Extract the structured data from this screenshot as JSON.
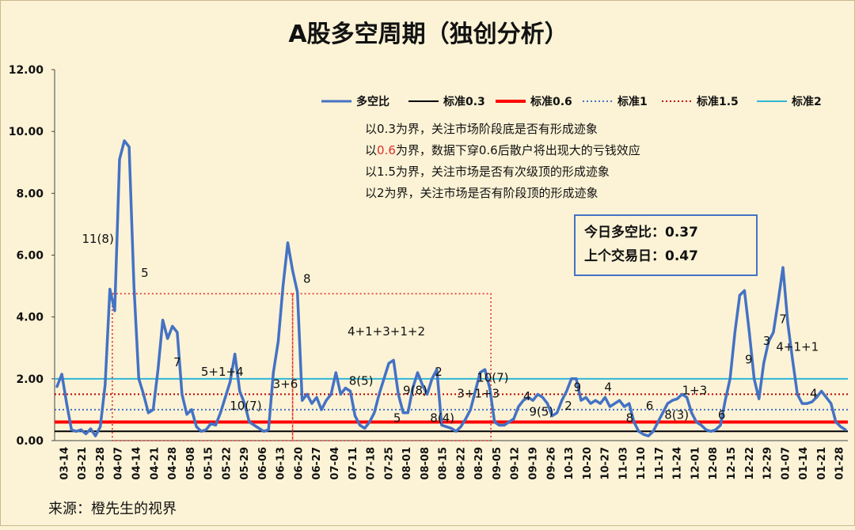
{
  "chart_data": {
    "type": "line",
    "title": "A股多空周期（独创分析）",
    "source": "来源：橙先生的视界",
    "ylim": [
      0,
      12
    ],
    "y_ticks": [
      "0.00",
      "2.00",
      "4.00",
      "6.00",
      "8.00",
      "10.00",
      "12.00"
    ],
    "x_ticks": [
      "03-14",
      "03-21",
      "03-28",
      "04-07",
      "04-14",
      "04-21",
      "04-28",
      "05-08",
      "05-15",
      "05-22",
      "05-29",
      "06-06",
      "06-13",
      "06-20",
      "06-27",
      "07-04",
      "07-11",
      "07-18",
      "07-25",
      "08-01",
      "08-08",
      "08-15",
      "08-22",
      "08-29",
      "09-05",
      "09-12",
      "09-19",
      "09-26",
      "10-13",
      "10-20",
      "10-27",
      "11-03",
      "11-10",
      "11-17",
      "11-24",
      "12-01",
      "12-08",
      "12-15",
      "12-22",
      "12-29",
      "01-07",
      "01-14",
      "01-21",
      "01-28"
    ],
    "series": [
      {
        "name": "多空比",
        "color": "#4472c4",
        "values": [
          1.75,
          2.15,
          1.2,
          0.35,
          0.3,
          0.35,
          0.22,
          0.38,
          0.15,
          0.45,
          1.8,
          4.9,
          4.2,
          9.1,
          9.7,
          9.5,
          5.0,
          2.0,
          1.5,
          0.9,
          1.0,
          2.3,
          3.9,
          3.3,
          3.7,
          3.5,
          1.5,
          0.85,
          1.0,
          0.45,
          0.3,
          0.35,
          0.55,
          0.5,
          0.9,
          1.4,
          1.9,
          2.8,
          1.6,
          1.2,
          0.6,
          0.5,
          0.4,
          0.3,
          0.35,
          2.2,
          3.2,
          5.0,
          6.4,
          5.5,
          4.8,
          1.3,
          1.5,
          1.2,
          1.4,
          1.0,
          1.3,
          1.5,
          2.2,
          1.5,
          1.7,
          1.6,
          0.8,
          0.5,
          0.4,
          0.6,
          0.9,
          1.5,
          2.0,
          2.5,
          2.6,
          1.5,
          0.9,
          0.9,
          1.7,
          2.2,
          1.8,
          1.5,
          2.0,
          2.3,
          0.5,
          0.45,
          0.4,
          0.3,
          0.45,
          0.7,
          1.0,
          1.6,
          2.2,
          2.3,
          1.7,
          0.6,
          0.5,
          0.5,
          0.6,
          0.7,
          1.1,
          1.3,
          1.4,
          1.3,
          1.5,
          1.4,
          1.2,
          0.8,
          0.9,
          1.3,
          1.6,
          2.0,
          2.0,
          1.3,
          1.4,
          1.2,
          1.3,
          1.2,
          1.4,
          1.1,
          1.2,
          1.3,
          1.1,
          1.2,
          0.6,
          0.3,
          0.2,
          0.15,
          0.3,
          0.6,
          0.9,
          1.2,
          1.3,
          1.35,
          1.5,
          1.4,
          0.9,
          0.6,
          0.5,
          0.35,
          0.3,
          0.35,
          0.5,
          1.3,
          2.0,
          3.5,
          4.7,
          4.85,
          3.5,
          2.0,
          1.35,
          2.5,
          3.2,
          3.5,
          4.5,
          5.6,
          3.8,
          2.6,
          1.5,
          1.2,
          1.2,
          1.25,
          1.4,
          1.6,
          1.4,
          1.2,
          0.6,
          0.45,
          0.35
        ]
      },
      {
        "name": "标准0.3",
        "color": "#000000",
        "value": 0.3
      },
      {
        "name": "标准0.6",
        "color": "#ff0000",
        "value": 0.6
      },
      {
        "name": "标准1",
        "color": "#4472c4",
        "value": 1.0
      },
      {
        "name": "标准1.5",
        "color": "#c00000",
        "value": 1.5
      },
      {
        "name": "标准2",
        "color": "#31b6d6",
        "value": 2.0
      }
    ],
    "notes": [
      {
        "prefix": "以",
        "highlight": "",
        "suffix": "0.3为界，关注市场阶段底是否有形成迹象"
      },
      {
        "prefix": "以",
        "highlight": "0.6",
        "suffix": "为界，数据下穿0.6后散户将出现大的亏钱效应"
      },
      {
        "prefix": "以",
        "highlight": "",
        "suffix": "1.5为界，关注市场是否有次级顶的形成迹象"
      },
      {
        "prefix": "以",
        "highlight": "",
        "suffix": "2为界，关注市场是否有阶段顶的形成迹象"
      }
    ],
    "info_box": [
      "今日多空比：0.37",
      "上个交易日：0.47"
    ],
    "annotations": [
      {
        "text": "11(8)",
        "x": 2.4,
        "y": 6.4
      },
      {
        "text": "5",
        "x": 5.0,
        "y": 5.3
      },
      {
        "text": "7",
        "x": 6.8,
        "y": 2.4
      },
      {
        "text": "5+1+4",
        "x": 9.3,
        "y": 2.1
      },
      {
        "text": "10(7)",
        "x": 10.6,
        "y": 1.0
      },
      {
        "text": "3+6",
        "x": 12.8,
        "y": 1.7
      },
      {
        "text": "8",
        "x": 14.0,
        "y": 5.1
      },
      {
        "text": "4+1+3+1+2",
        "x": 18.4,
        "y": 3.4
      },
      {
        "text": "8(5)",
        "x": 17.0,
        "y": 1.8
      },
      {
        "text": "9(8)",
        "x": 20.0,
        "y": 1.5
      },
      {
        "text": "5",
        "x": 19.0,
        "y": 0.6
      },
      {
        "text": "2",
        "x": 21.3,
        "y": 2.1
      },
      {
        "text": "8(4)",
        "x": 21.5,
        "y": 0.6
      },
      {
        "text": "3+1+3",
        "x": 23.5,
        "y": 1.4
      },
      {
        "text": "10(7)",
        "x": 24.3,
        "y": 1.9
      },
      {
        "text": "4",
        "x": 26.2,
        "y": 1.3
      },
      {
        "text": "9(5)",
        "x": 27.0,
        "y": 0.8
      },
      {
        "text": "9",
        "x": 29.0,
        "y": 1.6
      },
      {
        "text": "2",
        "x": 28.5,
        "y": 1.0
      },
      {
        "text": "4",
        "x": 30.7,
        "y": 1.6
      },
      {
        "text": "8",
        "x": 31.9,
        "y": 0.6
      },
      {
        "text": "6",
        "x": 33.0,
        "y": 1.0
      },
      {
        "text": "8(3)",
        "x": 34.5,
        "y": 0.7
      },
      {
        "text": "1+3",
        "x": 35.5,
        "y": 1.5
      },
      {
        "text": "6",
        "x": 37.0,
        "y": 0.7
      },
      {
        "text": "9",
        "x": 38.5,
        "y": 2.5
      },
      {
        "text": "3",
        "x": 39.5,
        "y": 3.1
      },
      {
        "text": "7",
        "x": 40.4,
        "y": 3.8
      },
      {
        "text": "4+1+1",
        "x": 41.2,
        "y": 2.9
      },
      {
        "text": "4",
        "x": 42.1,
        "y": 1.4
      }
    ],
    "regions": [
      {
        "x_start": 3.2,
        "x_end": 13.2,
        "y_top": 4.75
      },
      {
        "x_start": 13.2,
        "x_end": 24.2,
        "y_top": 4.75
      }
    ],
    "grid": false,
    "legend_position": "top-right"
  }
}
